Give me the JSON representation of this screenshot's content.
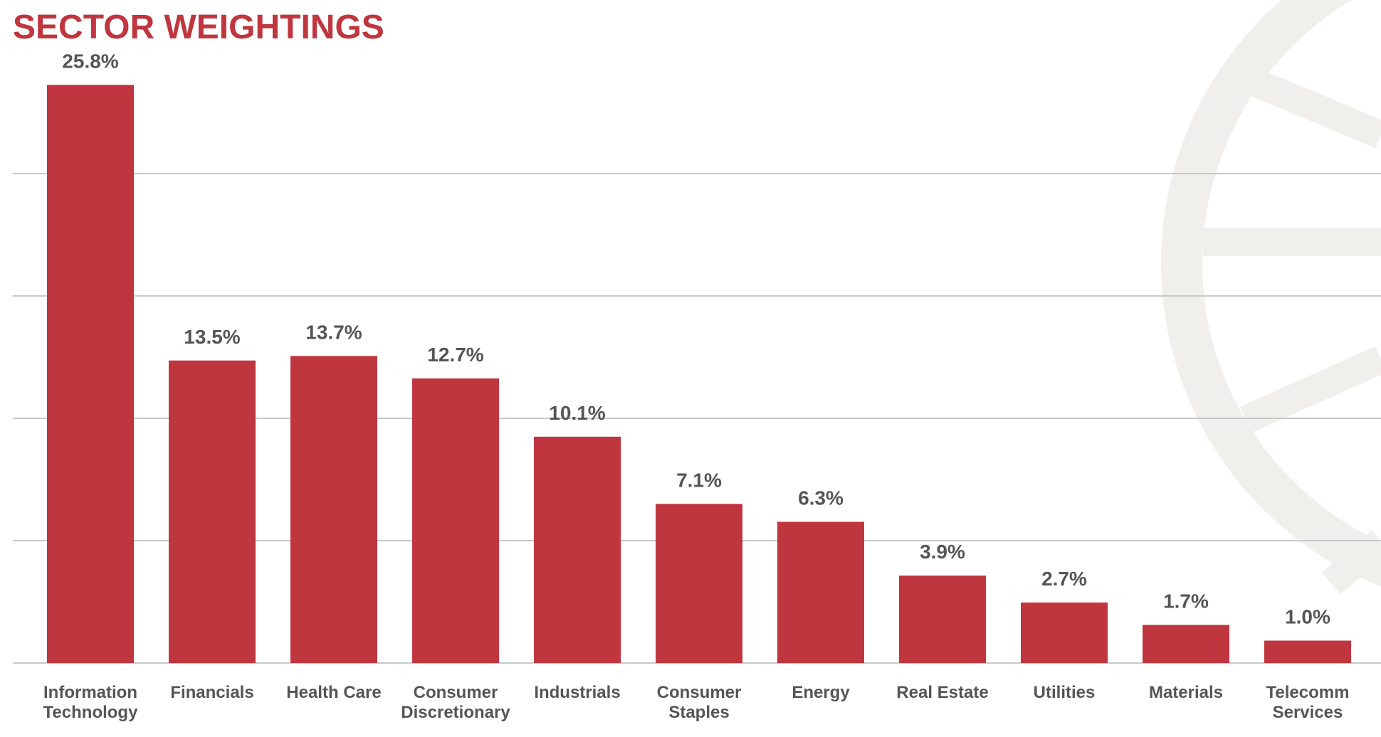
{
  "colors": {
    "bar": "#c0363f",
    "title": "#c0363f",
    "label": "#555555",
    "grid": "#c8c8c8",
    "watermark": "#f1efec"
  },
  "chart_data": {
    "type": "bar",
    "title": "SECTOR WEIGHTINGS",
    "xlabel": "",
    "ylabel": "",
    "unit": "%",
    "ylim": [
      0,
      28
    ],
    "grid": true,
    "legend": "none",
    "categories": [
      [
        "Information",
        "Technology"
      ],
      [
        "Financials"
      ],
      [
        "Health Care"
      ],
      [
        "Consumer",
        "Discretionary"
      ],
      [
        "Industrials"
      ],
      [
        "Consumer",
        "Staples"
      ],
      [
        "Energy"
      ],
      [
        "Real Estate"
      ],
      [
        "Utilities"
      ],
      [
        "Materials"
      ],
      [
        "Telecomm",
        "Services"
      ]
    ],
    "values": [
      25.8,
      13.5,
      13.7,
      12.7,
      10.1,
      7.1,
      6.3,
      3.9,
      2.7,
      1.7,
      1.0
    ],
    "value_labels": [
      "25.8%",
      "13.5%",
      "13.7%",
      "12.7%",
      "10.1%",
      "7.1%",
      "6.3%",
      "3.9%",
      "2.7%",
      "1.7%",
      "1.0%"
    ]
  }
}
